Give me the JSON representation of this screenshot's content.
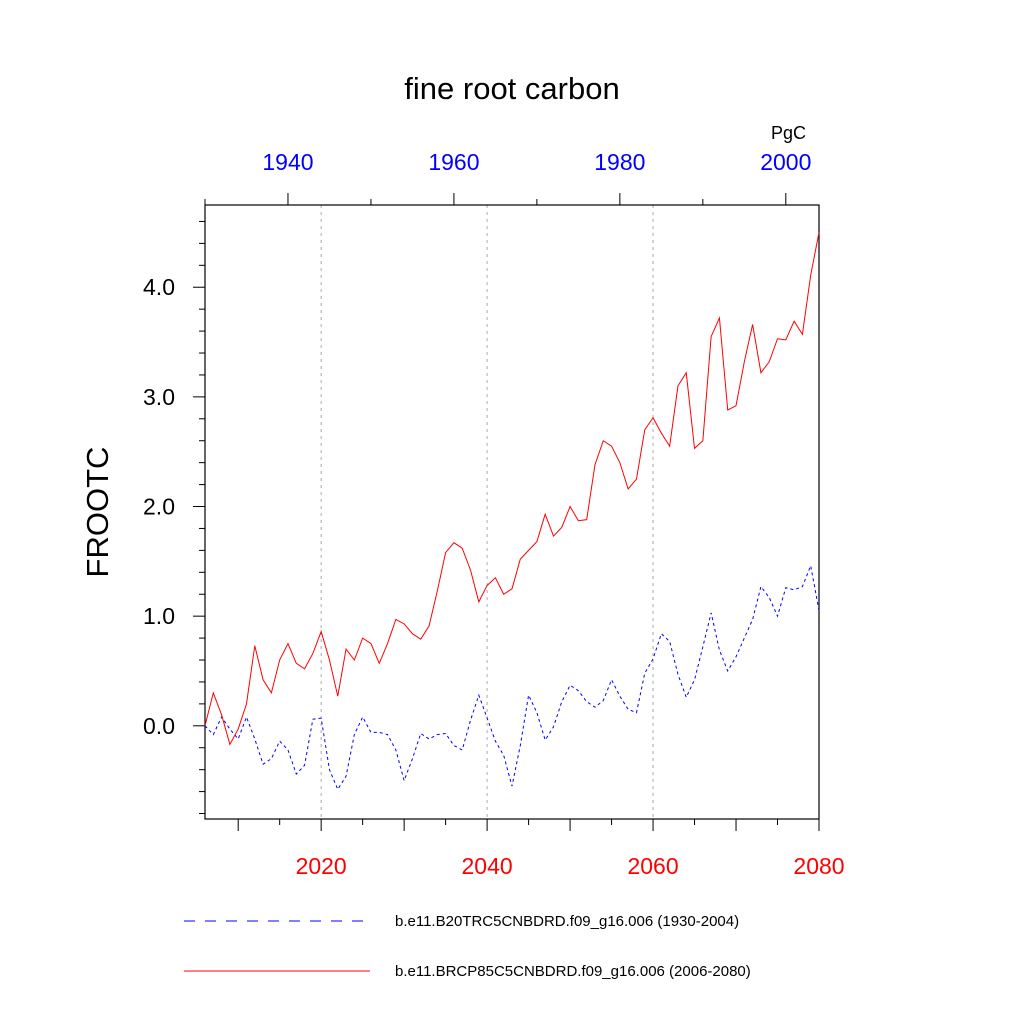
{
  "chart_data": {
    "type": "line",
    "title": "fine root carbon",
    "ylabel": "FROOTC",
    "units": "PgC",
    "ylim": [
      -0.85,
      4.75
    ],
    "yticks": [
      0.0,
      1.0,
      2.0,
      3.0,
      4.0
    ],
    "ytick_labels": [
      "0.0",
      "1.0",
      "2.0",
      "3.0",
      "4.0"
    ],
    "grid": "vertical dashed lines at labeled bottom-axis years",
    "x_bottom": {
      "range": [
        2006,
        2080
      ],
      "ticks": [
        2020,
        2040,
        2060,
        2080
      ],
      "tick_labels": [
        "2020",
        "2040",
        "2060",
        "2080"
      ],
      "color": "#ff0000"
    },
    "x_top": {
      "range": [
        1930,
        2004
      ],
      "ticks": [
        1940,
        1960,
        1980,
        2000
      ],
      "tick_labels": [
        "1940",
        "1960",
        "1980",
        "2000"
      ],
      "color": "#0000ff"
    },
    "legend_position": "bottom",
    "series": [
      {
        "name": "b.e11.B20TRC5CNBDRD.f09_g16.006 (1930-2004)",
        "color": "#0000ff",
        "style": "dashed",
        "axis": "top",
        "x_start": 1930,
        "values": [
          0.0,
          -0.08,
          0.08,
          -0.03,
          -0.12,
          0.08,
          -0.12,
          -0.35,
          -0.3,
          -0.14,
          -0.22,
          -0.44,
          -0.36,
          0.06,
          0.07,
          -0.4,
          -0.58,
          -0.46,
          -0.08,
          0.08,
          -0.06,
          -0.06,
          -0.08,
          -0.22,
          -0.5,
          -0.3,
          -0.07,
          -0.12,
          -0.08,
          -0.07,
          -0.18,
          -0.22,
          0.05,
          0.28,
          0.07,
          -0.14,
          -0.27,
          -0.55,
          -0.18,
          0.28,
          0.12,
          -0.13,
          -0.01,
          0.22,
          0.37,
          0.32,
          0.22,
          0.17,
          0.23,
          0.42,
          0.27,
          0.15,
          0.12,
          0.48,
          0.61,
          0.84,
          0.77,
          0.47,
          0.26,
          0.42,
          0.72,
          1.03,
          0.69,
          0.5,
          0.63,
          0.8,
          0.97,
          1.27,
          1.17,
          1.0,
          1.26,
          1.24,
          1.27,
          1.46,
          1.05
        ]
      },
      {
        "name": "b.e11.BRCP85C5CNBDRD.f09_g16.006 (2006-2080)",
        "color": "#ff0000",
        "style": "solid",
        "axis": "bottom",
        "x_start": 2006,
        "values": [
          0.0,
          0.3,
          0.1,
          -0.17,
          -0.03,
          0.2,
          0.73,
          0.42,
          0.3,
          0.6,
          0.75,
          0.57,
          0.52,
          0.66,
          0.86,
          0.6,
          0.27,
          0.7,
          0.6,
          0.8,
          0.75,
          0.57,
          0.75,
          0.97,
          0.93,
          0.84,
          0.79,
          0.91,
          1.23,
          1.58,
          1.67,
          1.62,
          1.42,
          1.13,
          1.28,
          1.35,
          1.2,
          1.25,
          1.52,
          1.6,
          1.68,
          1.93,
          1.73,
          1.81,
          2.0,
          1.87,
          1.88,
          2.38,
          2.6,
          2.55,
          2.4,
          2.16,
          2.25,
          2.7,
          2.81,
          2.67,
          2.55,
          3.1,
          3.22,
          2.53,
          2.6,
          3.55,
          3.72,
          2.88,
          2.92,
          3.32,
          3.66,
          3.22,
          3.32,
          3.53,
          3.52,
          3.69,
          3.57,
          4.11,
          4.5
        ]
      }
    ]
  },
  "legend": [
    {
      "label": "b.e11.B20TRC5CNBDRD.f09_g16.006 (1930-2004)",
      "color": "#0000ff",
      "style": "dashed"
    },
    {
      "label": "b.e11.BRCP85C5CNBDRD.f09_g16.006 (2006-2080)",
      "color": "#ff0000",
      "style": "solid"
    }
  ]
}
